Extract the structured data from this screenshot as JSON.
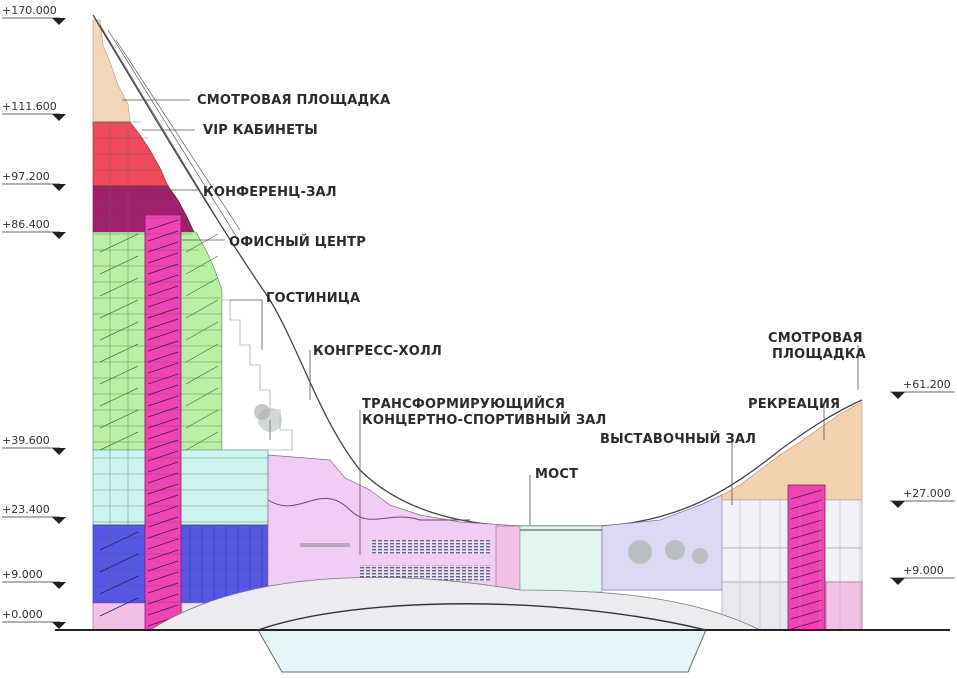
{
  "levels_left": [
    {
      "value": "+170.000"
    },
    {
      "value": "+111.600"
    },
    {
      "value": "+97.200"
    },
    {
      "value": "+86.400"
    },
    {
      "value": "+39.600"
    },
    {
      "value": "+23.400"
    },
    {
      "value": "+9.000"
    },
    {
      "value": "+0.000"
    }
  ],
  "levels_right": [
    {
      "value": "+61.200"
    },
    {
      "value": "+27.000"
    },
    {
      "value": "+9.000"
    }
  ],
  "labels": {
    "observation_deck_top": "СМОТРОВАЯ ПЛОЩАДКА",
    "vip_offices": "VIP КАБИНЕТЫ",
    "conference_hall": "КОНФЕРЕНЦ-ЗАЛ",
    "office_center": "ОФИСНЫЙ ЦЕНТР",
    "hotel": "ГОСТИНИЦА",
    "congress_hall": "КОНГРЕСС-ХОЛЛ",
    "transforming_hall_line1": "ТРАНСФОРМИРУЮЩИЙСЯ",
    "transforming_hall_line2": "КОНЦЕРТНО-СПОРТИВНЫЙ ЗАЛ",
    "bridge": "МОСТ",
    "exhibition_hall": "ВЫСТАВОЧНЫЙ ЗАЛ",
    "recreation": "РЕКРЕАЦИЯ",
    "observation_deck_right_line1": "СМОТРОВАЯ",
    "observation_deck_right_line2": "ПЛОЩАДКА"
  },
  "colors": {
    "observation": "#f2d6b8",
    "vip": "#ef4b5a",
    "conference": "#a0206e",
    "office": "#b9f0a4",
    "core": "#ee44b6",
    "hotel_lobby": "#cdf5f0",
    "lower_blue": "#5757e6",
    "pink_light": "#f3c0e6",
    "hall": "#f1cdf5",
    "exhibition": "#ddd8f4",
    "bridge_glass": "#e2f5ee",
    "right_upper": "#f4d2b0",
    "water": "#e4f6fa"
  }
}
